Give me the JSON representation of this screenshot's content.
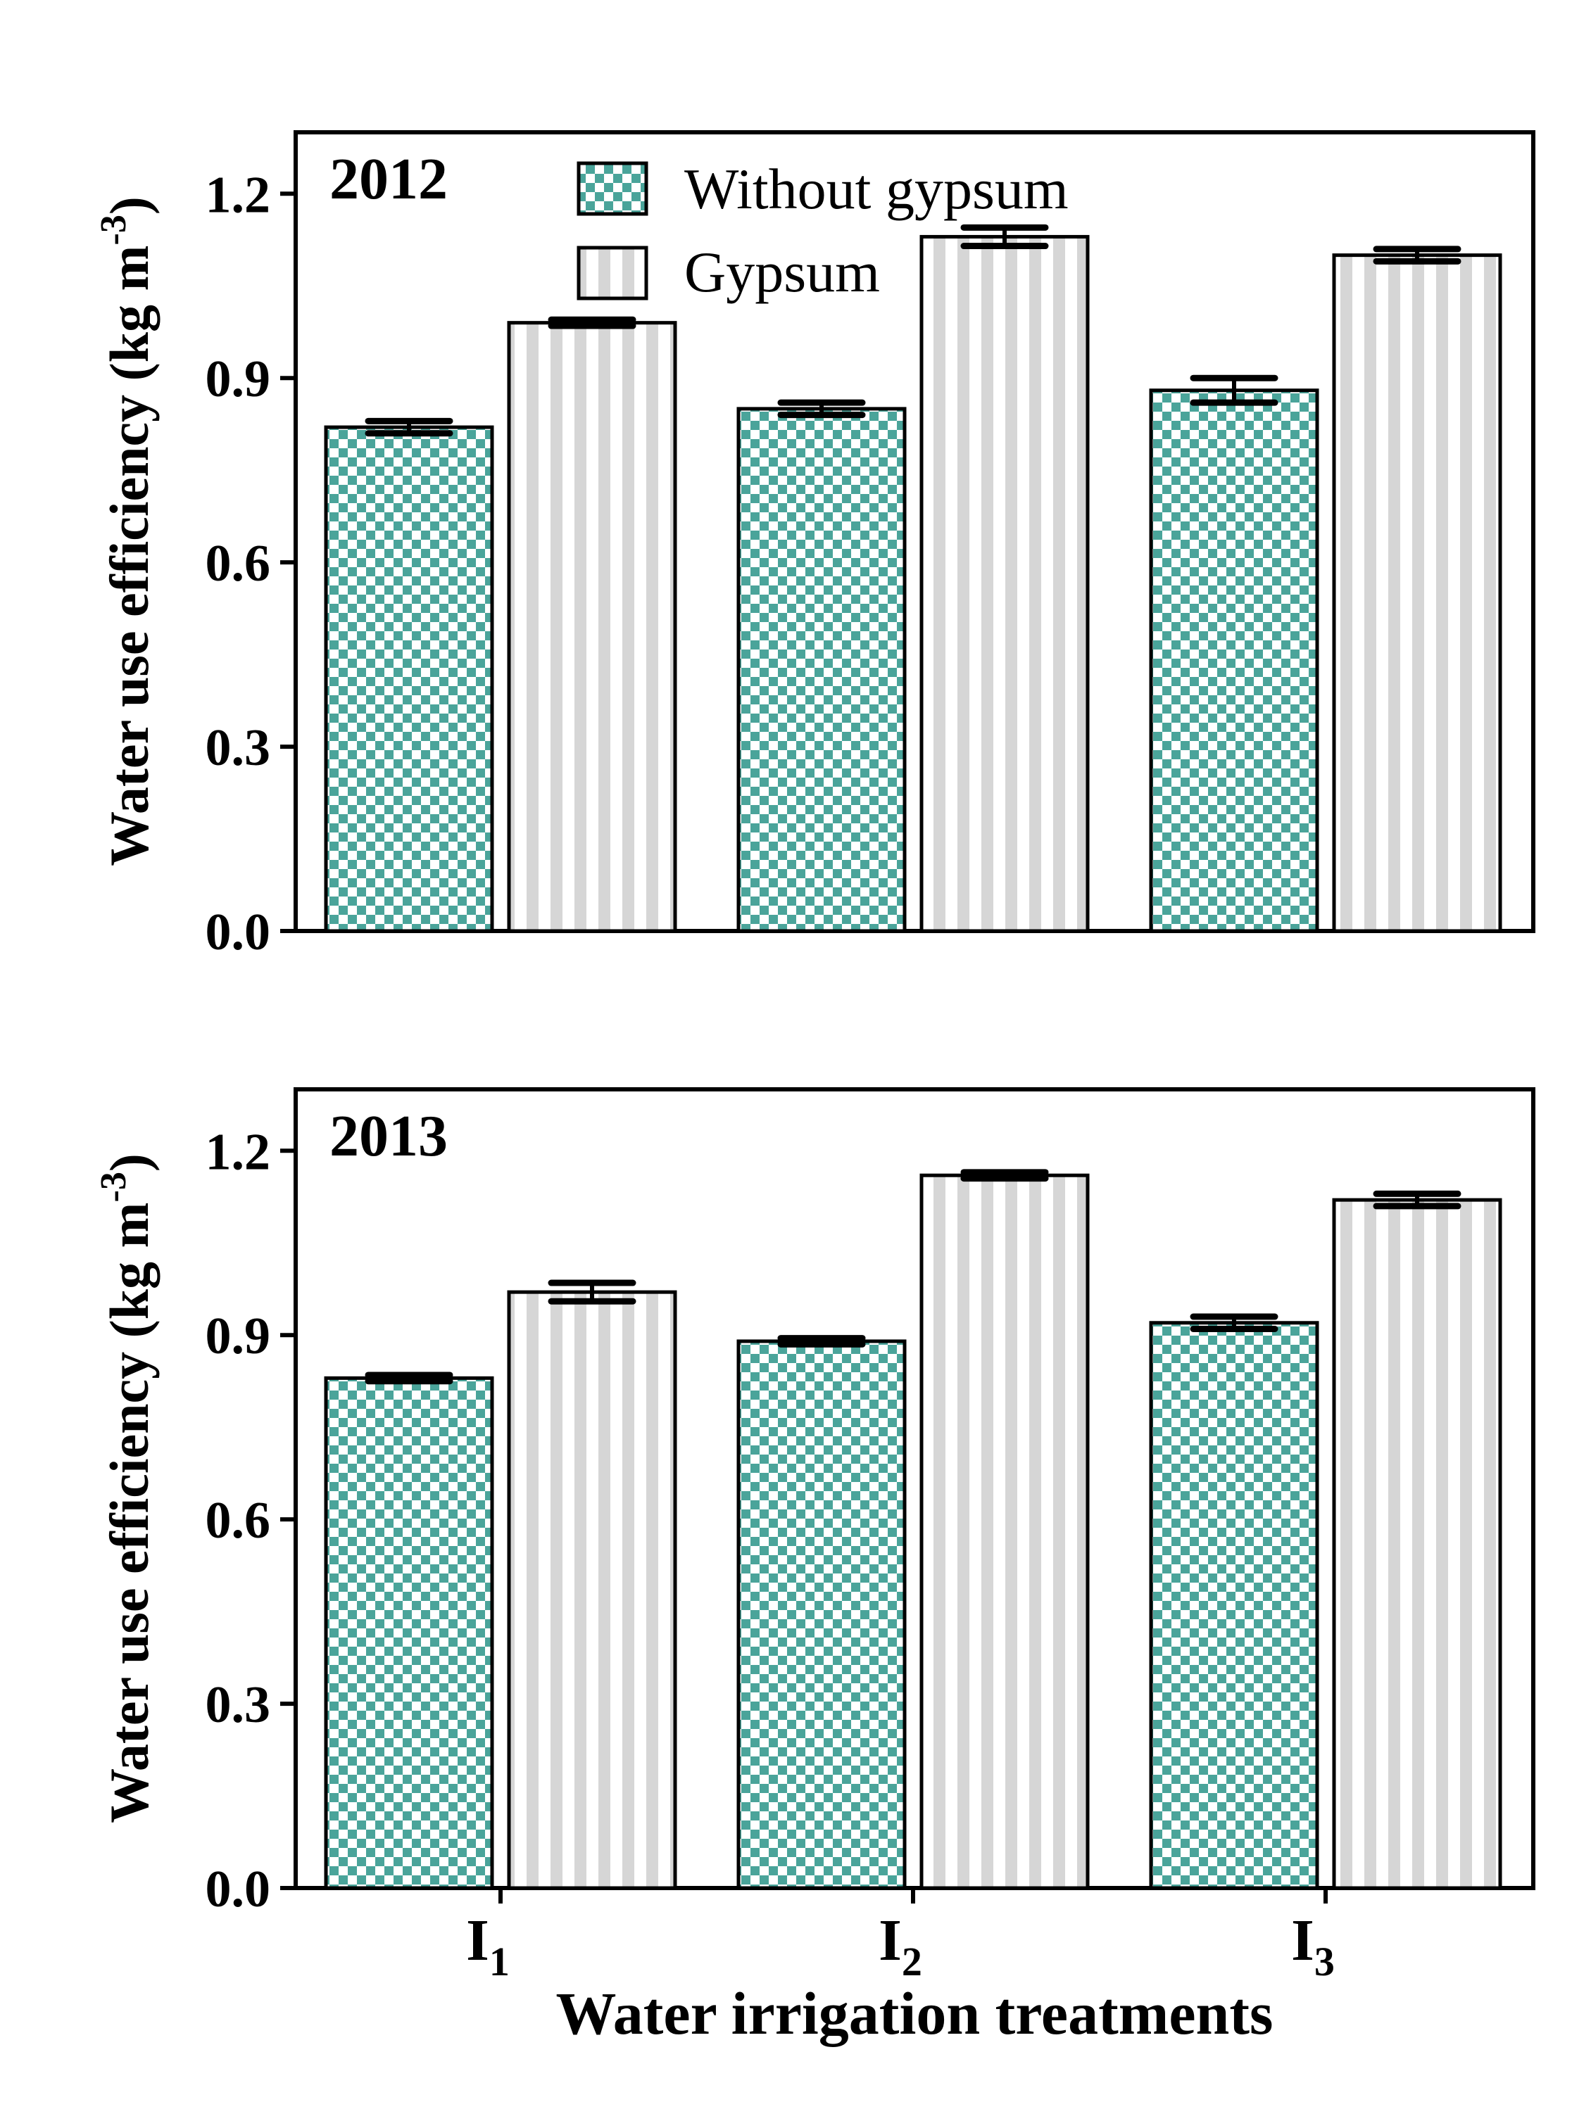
{
  "chart_data": [
    {
      "type": "bar",
      "title": "2012",
      "ylabel": "Water use efficiency (kg m⁻³)",
      "ylabel_main": "Water use efficiency (kg m",
      "ylabel_sup": "-3",
      "ylabel_close": ")",
      "ylim": [
        0,
        1.3
      ],
      "yticks": [
        "0.0",
        "0.3",
        "0.6",
        "0.9",
        "1.2"
      ],
      "ytick_values": [
        0,
        0.3,
        0.6,
        0.9,
        1.2
      ],
      "categories": [
        "I1",
        "I2",
        "I3"
      ],
      "series": [
        {
          "name": "Without gypsum",
          "values": [
            0.82,
            0.85,
            0.88
          ],
          "errors": [
            0.01,
            0.01,
            0.02
          ]
        },
        {
          "name": "Gypsum",
          "values": [
            0.99,
            1.13,
            1.1
          ],
          "errors": [
            0.005,
            0.015,
            0.01
          ]
        }
      ],
      "legend": "top-left"
    },
    {
      "type": "bar",
      "title": "2013",
      "ylabel": "Water use efficiency (kg m⁻³)",
      "ylabel_main": "Water use efficiency (kg m",
      "ylabel_sup": "-3",
      "ylabel_close": ")",
      "ylim": [
        0,
        1.3
      ],
      "yticks": [
        "0.0",
        "0.3",
        "0.6",
        "0.9",
        "1.2"
      ],
      "ytick_values": [
        0,
        0.3,
        0.6,
        0.9,
        1.2
      ],
      "categories": [
        "I1",
        "I2",
        "I3"
      ],
      "series": [
        {
          "name": "Without gypsum",
          "values": [
            0.83,
            0.89,
            0.92
          ],
          "errors": [
            0.005,
            0.005,
            0.01
          ]
        },
        {
          "name": "Gypsum",
          "values": [
            0.97,
            1.16,
            1.12
          ],
          "errors": [
            0.015,
            0.005,
            0.01
          ]
        }
      ]
    }
  ],
  "xcategories": [
    {
      "base": "I",
      "sub": "1"
    },
    {
      "base": "I",
      "sub": "2"
    },
    {
      "base": "I",
      "sub": "3"
    }
  ],
  "xlabel": "Water irrigation treatments",
  "legend_items": [
    "Without gypsum",
    "Gypsum"
  ],
  "colors": {
    "teal": "#4aa49a",
    "light": "#ffffff",
    "stripe": "#d6d6d6",
    "axis": "#000000"
  }
}
